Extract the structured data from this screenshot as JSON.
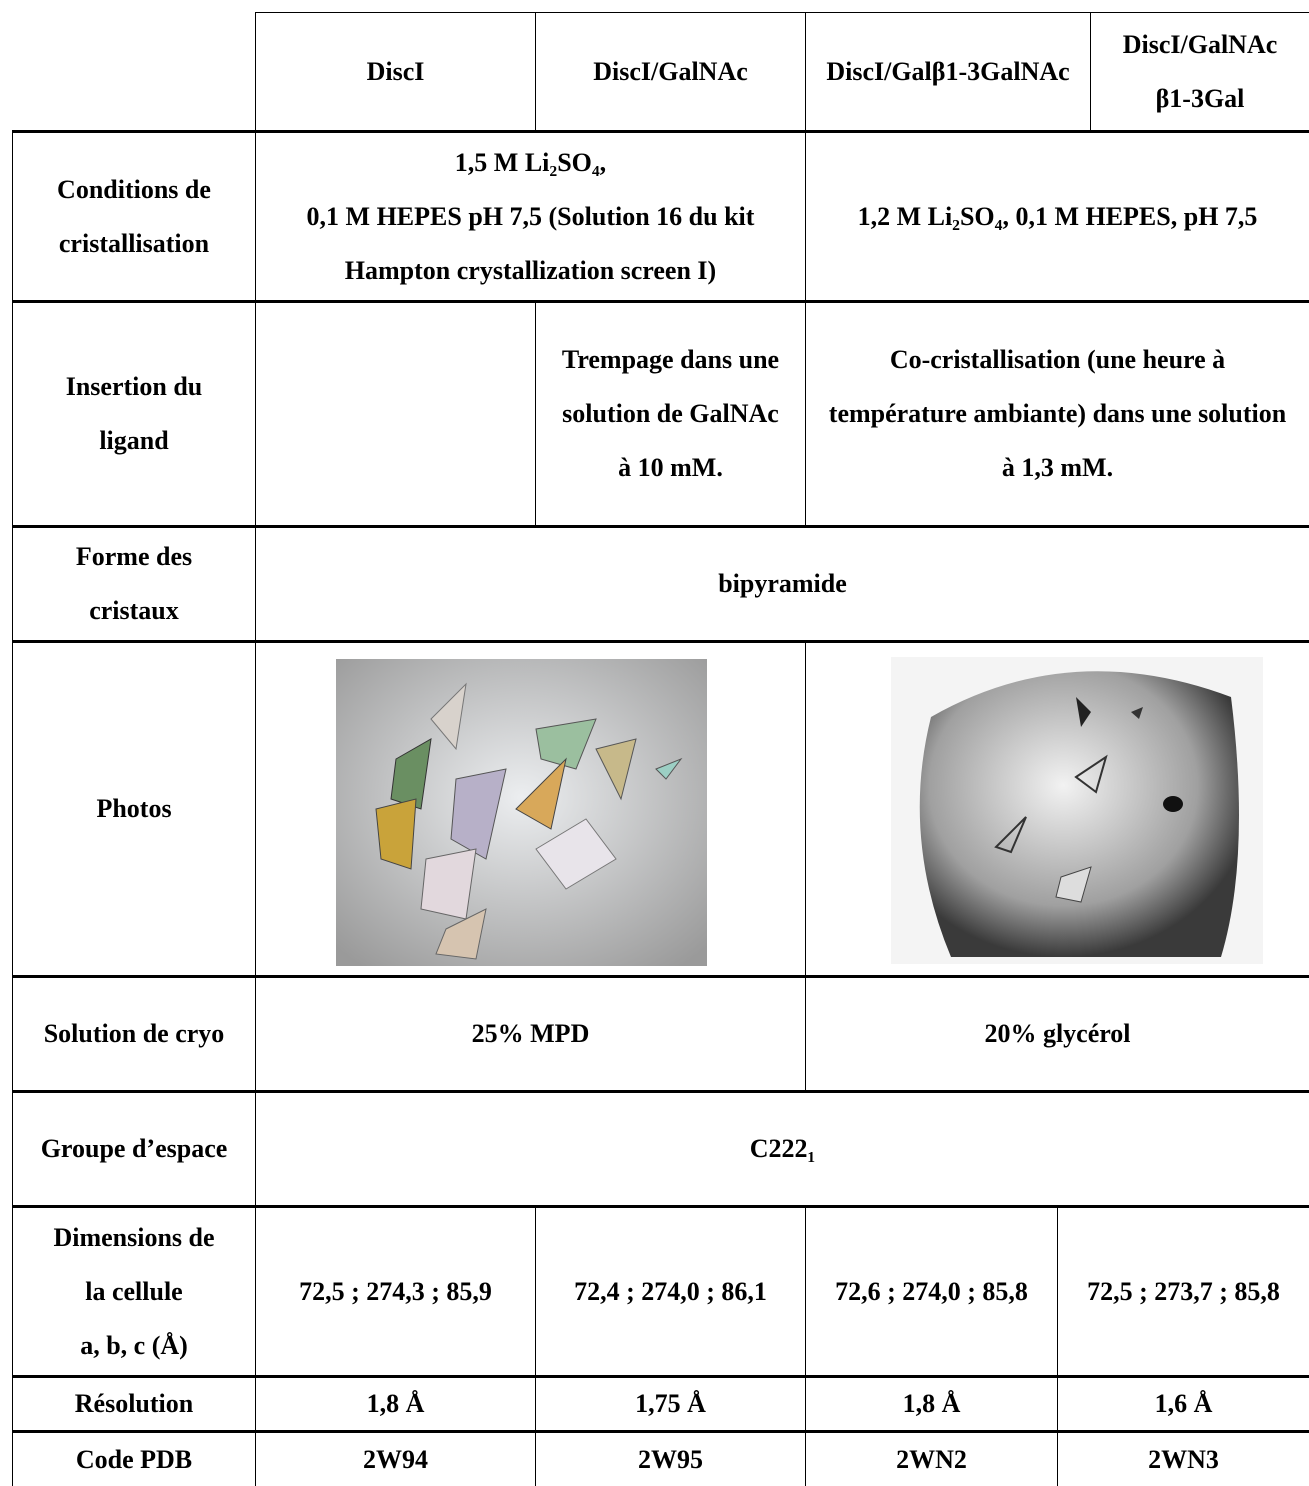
{
  "table": {
    "header": [
      "DiscI",
      "DiscI/GalNAc",
      "DiscI/Galβ1-3GalNAc",
      "DiscI/GalNAc β1-3Gal"
    ],
    "rows": [
      {
        "label": "Conditions de cristallisation",
        "cells": [
          "1,5 M Li₂SO₄,\n0,1 M HEPES pH 7,5 (Solution 16 du kit Hampton crystallization screen I)",
          "1,2 M Li₂SO₄, 0,1 M HEPES, pH 7,5"
        ]
      },
      {
        "label": "Insertion du ligand",
        "cells": [
          "Trempage dans une solution de GalNAc à 10 mM.",
          "Co-cristallisation (une heure à température ambiante) dans une solution à 1,3 mM."
        ]
      },
      {
        "label": "Forme des cristaux",
        "cells": [
          "bipyramide"
        ]
      },
      {
        "label": "Photos"
      },
      {
        "label": "Solution de cryo",
        "cells": [
          "25% MPD",
          "20% glycérol"
        ]
      },
      {
        "label": "Groupe d’espace",
        "cells": [
          "C222₁"
        ]
      },
      {
        "label": "Dimensions de\nla cellule\na, b, c (Å)",
        "cells": [
          "72,5 ; 274,3 ; 85,9",
          "72,4 ; 274,0 ; 86,1",
          "72,6 ; 274,0 ; 85,8",
          "72,5 ; 273,7 ; 85,8"
        ]
      },
      {
        "label": "Résolution",
        "cells": [
          "1,8 Å",
          "1,75 Å",
          "1,8 Å",
          "1,6 Å"
        ]
      },
      {
        "label": "Code PDB",
        "cells": [
          "2W94",
          "2W95",
          "2WN2",
          "2WN3"
        ]
      }
    ]
  }
}
